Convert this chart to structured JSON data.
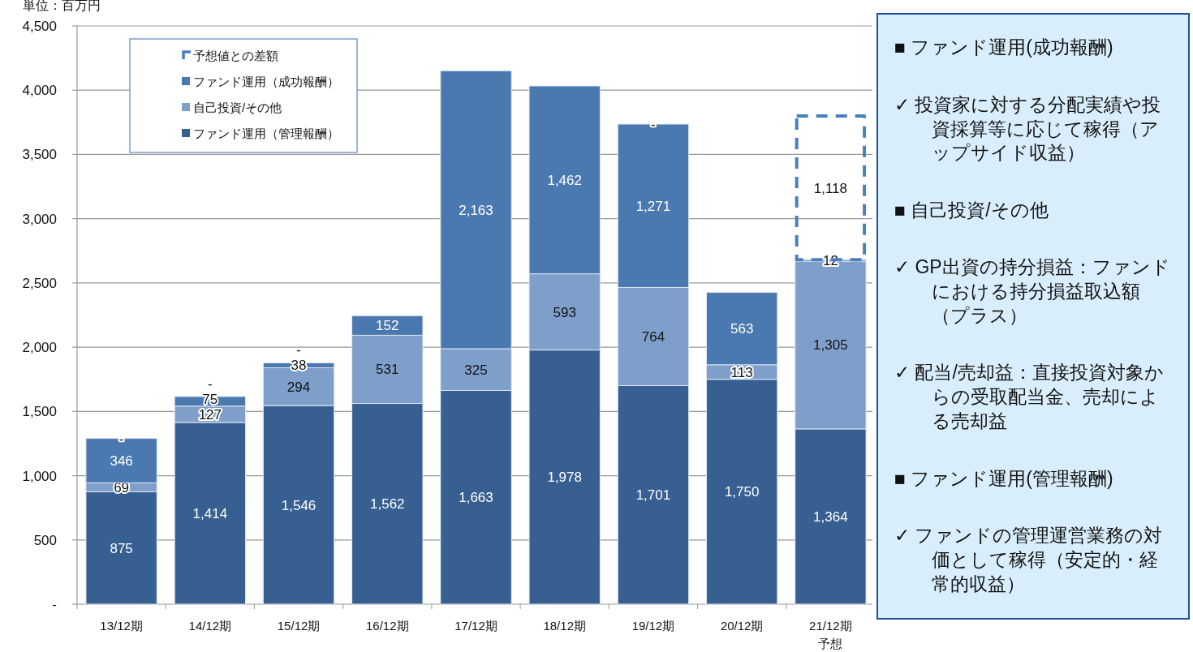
{
  "chart_data": [
    {
      "type": "bar",
      "stacked": true,
      "annotations": [
        "単位：百万円"
      ],
      "categories": [
        "13/12期",
        "14/12期",
        "15/12期",
        "16/12期",
        "17/12期",
        "18/12期",
        "19/12期",
        "20/12期",
        "21/12期予想"
      ],
      "ylim": [
        0,
        4500
      ],
      "yticks": [
        {
          "value": 0,
          "label": "-"
        },
        {
          "value": 500,
          "label": "500"
        },
        {
          "value": 1000,
          "label": "1,000"
        },
        {
          "value": 1500,
          "label": "1,500"
        },
        {
          "value": 2000,
          "label": "2,000"
        },
        {
          "value": 2500,
          "label": "2,500"
        },
        {
          "value": 3000,
          "label": "3,000"
        },
        {
          "value": 3500,
          "label": "3,500"
        },
        {
          "value": 4000,
          "label": "4,000"
        },
        {
          "value": 4500,
          "label": "4,500"
        }
      ],
      "grid": "y",
      "legend": "top left",
      "series": [
        {
          "name": "ファンド運用（管理報酬）",
          "color": "#375f91",
          "values": [
            875,
            1414,
            1546,
            1562,
            1663,
            1978,
            1701,
            1750,
            1364
          ],
          "value_labels": [
            "875",
            "1,414",
            "1,546",
            "1,562",
            "1,663",
            "1,978",
            "1,701",
            "1,750",
            "1,364"
          ]
        },
        {
          "name": "自己投資/その他",
          "color": "#7f9fcb",
          "values": [
            69,
            127,
            294,
            531,
            325,
            593,
            764,
            113,
            1305
          ],
          "value_labels": [
            "69",
            "127",
            "294",
            "531",
            "325",
            "593",
            "764",
            "113",
            "1,305"
          ]
        },
        {
          "name": "ファンド運用（成功報酬）",
          "color": "#4a78b0",
          "values": [
            346,
            75,
            38,
            152,
            2163,
            1462,
            1271,
            563,
            12
          ],
          "value_labels": [
            "346",
            "75",
            "38",
            "152",
            "2,163",
            "1,462",
            "1,271",
            "563",
            "12"
          ]
        },
        {
          "name": "予想値との差額",
          "color": "#4a7fc0",
          "line_style": "dashed",
          "values": [
            0,
            0,
            0,
            null,
            null,
            null,
            0,
            null,
            1118
          ],
          "value_labels": [
            "-",
            "-",
            "-",
            null,
            null,
            null,
            "-",
            null,
            "1,118"
          ]
        }
      ]
    },
    {
      "type": "other",
      "annotations": [
        "■ ファンド運用(成功報酬)",
        "✓ 投資家に対する分配実績や投資採算等に応じて稼得（アップサイド収益）",
        "■ 自己投資/その他",
        "✓ GP出資の持分損益：ファンドにおける持分損益取込額（プラス）",
        "✓ 配当/売却益：直接投資対象からの受取配当金、売却による売却益",
        "■ ファンド運用(管理報酬)",
        "✓ ファンドの管理運営業務の対価として稼得（安定的・経常的収益）"
      ]
    }
  ]
}
